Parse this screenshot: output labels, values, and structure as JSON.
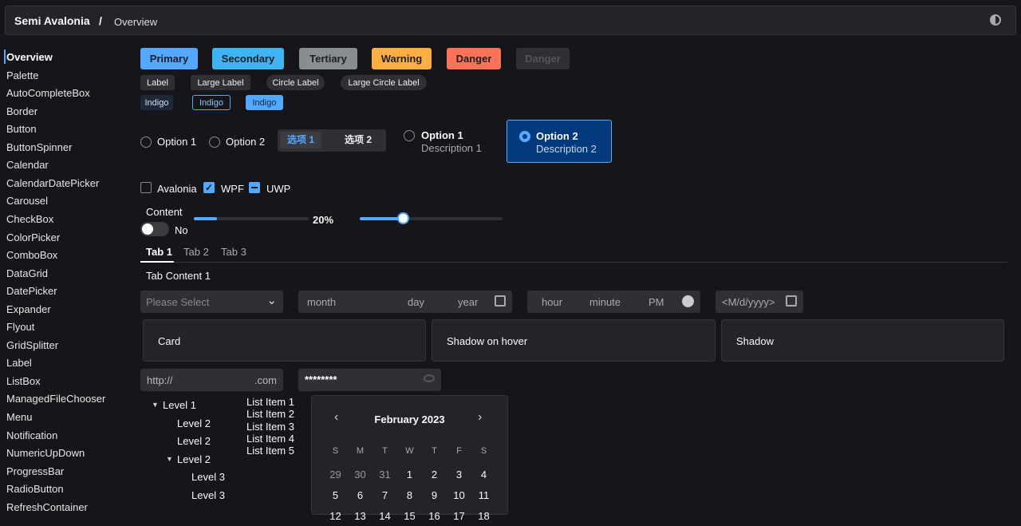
{
  "header": {
    "title": "Semi Avalonia",
    "separator": "/",
    "page": "Overview",
    "theme_icon": "theme-toggle-icon"
  },
  "sidebar": {
    "items": [
      "Overview",
      "Palette",
      "AutoCompleteBox",
      "Border",
      "Button",
      "ButtonSpinner",
      "Calendar",
      "CalendarDatePicker",
      "Carousel",
      "CheckBox",
      "ColorPicker",
      "ComboBox",
      "DataGrid",
      "DatePicker",
      "Expander",
      "Flyout",
      "GridSplitter",
      "Label",
      "ListBox",
      "ManagedFileChooser",
      "Menu",
      "Notification",
      "NumericUpDown",
      "ProgressBar",
      "RadioButton",
      "RefreshContainer"
    ],
    "active": "Overview"
  },
  "buttons": [
    {
      "label": "Primary",
      "color": "#54a9ff"
    },
    {
      "label": "Secondary",
      "color": "#40b4f3"
    },
    {
      "label": "Tertiary",
      "color": "#888d92"
    },
    {
      "label": "Warning",
      "color": "#ffae43"
    },
    {
      "label": "Danger",
      "color": "#fc725a"
    },
    {
      "label": "Danger",
      "color": "#2e3035",
      "disabled": true
    }
  ],
  "labels": [
    "Label",
    "Large Label",
    "Circle Label",
    "Large Circle Label"
  ],
  "indigo": [
    "Indigo",
    "Indigo",
    "Indigo"
  ],
  "radios": {
    "option1": "Option 1",
    "option2": "Option 2"
  },
  "segmented": {
    "items": [
      "选项 1",
      "选项 2"
    ],
    "selected": 0
  },
  "radio_cards": [
    {
      "title": "Option 1",
      "desc": "Description 1",
      "checked": false
    },
    {
      "title": "Option 2",
      "desc": "Description 2",
      "checked": true
    }
  ],
  "checkboxes": [
    {
      "label": "Avalonia",
      "state": "unchecked"
    },
    {
      "label": "WPF",
      "state": "checked"
    },
    {
      "label": "UWP",
      "state": "indeterminate"
    }
  ],
  "toggle": {
    "header": "Content",
    "label": "No",
    "on": false
  },
  "progress": {
    "value": 20,
    "text": "20%"
  },
  "slider": {
    "value": 30
  },
  "tabs": {
    "items": [
      "Tab 1",
      "Tab 2",
      "Tab 3"
    ],
    "selected": 0,
    "content": "Tab Content 1"
  },
  "combo": {
    "placeholder": "Please Select"
  },
  "date": {
    "month": "month",
    "day": "day",
    "year": "year"
  },
  "time": {
    "hour": "hour",
    "minute": "minute",
    "ampm": "PM"
  },
  "date_picker": {
    "placeholder": "<M/d/yyyy>"
  },
  "cards": [
    "Card",
    "Shadow on hover",
    "Shadow"
  ],
  "url": {
    "prefix": "http://",
    "suffix": ".com"
  },
  "password": {
    "value": "********"
  },
  "tree": [
    "Level 1",
    "Level 2",
    "Level 2",
    "Level 2",
    "Level 3",
    "Level 3"
  ],
  "list": [
    "List Item 1",
    "List Item 2",
    "List Item 3",
    "List Item 4",
    "List Item 5"
  ],
  "calendar": {
    "title": "February 2023",
    "days": [
      "S",
      "M",
      "T",
      "W",
      "T",
      "F",
      "S"
    ],
    "rows": [
      [
        "29",
        "30",
        "31",
        "1",
        "2",
        "3",
        "4"
      ],
      [
        "5",
        "6",
        "7",
        "8",
        "9",
        "10",
        "11"
      ],
      [
        "12",
        "13",
        "14",
        "15",
        "16",
        "17",
        "18"
      ]
    ]
  },
  "accent": "#54a9ff"
}
